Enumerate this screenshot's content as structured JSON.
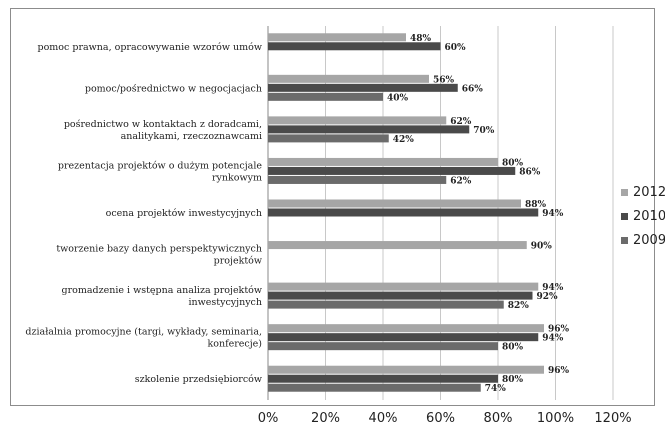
{
  "chart_data": {
    "type": "bar",
    "orientation": "horizontal",
    "categories": [
      [
        "pomoc prawna, opracowywanie wzorów umów"
      ],
      [
        "pomoc/pośrednictwo w negocjacjach"
      ],
      [
        "pośrednictwo w kontaktach z doradcami,",
        "analitykami, rzeczoznawcami"
      ],
      [
        "prezentacja projektów o dużym potencjale",
        "rynkowym"
      ],
      [
        "ocena projektów inwestycyjnych"
      ],
      [
        "tworzenie bazy danych perspektywicznych",
        "projektów"
      ],
      [
        "gromadzenie i wstępna analiza projektów",
        "inwestycyjnych"
      ],
      [
        "działalnia promocyjne (targi, wykłady, seminaria,",
        "konferecje)"
      ],
      [
        "szkolenie przedsiębiorców"
      ]
    ],
    "series": [
      {
        "name": "2012",
        "color": "#a6a6a6",
        "values": [
          48,
          56,
          62,
          80,
          88,
          90,
          94,
          96,
          96
        ]
      },
      {
        "name": "2010",
        "color": "#4a4a4a",
        "values": [
          60,
          66,
          70,
          86,
          94,
          null,
          92,
          94,
          80
        ]
      },
      {
        "name": "2009",
        "color": "#6b6b6b",
        "values": [
          null,
          40,
          42,
          62,
          null,
          null,
          82,
          80,
          74
        ]
      }
    ],
    "value_suffix": "%",
    "xlim": [
      0,
      120
    ],
    "xticks": [
      "0%",
      "20%",
      "40%",
      "60%",
      "80%",
      "100%",
      "120%"
    ],
    "grid": "vertical",
    "legend_position": "right"
  }
}
